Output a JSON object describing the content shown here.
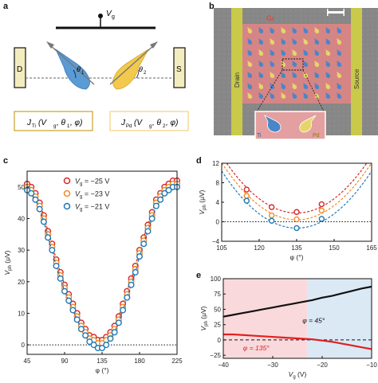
{
  "panels": {
    "a": {
      "letter": "a",
      "gate_label": "V",
      "gate_sub": "g",
      "left_electrode": "D",
      "right_electrode": "S",
      "theta1_label": "θ",
      "theta1_sub": "1",
      "theta2_label": "θ",
      "theta2_sub": "2",
      "box_left": {
        "main": "J",
        "sub": "Ti",
        "args": " (V",
        "args_sub": "g",
        "rest": ", θ",
        "rest_sub": "1",
        "end": ", φ)"
      },
      "box_right": {
        "main": "J",
        "sub": "Pd",
        "args": " (V",
        "args_sub": "g",
        "rest": ", θ",
        "rest_sub": "2",
        "end": ", φ)"
      },
      "colors": {
        "ti": "#5b9bd5",
        "pd": "#f2c94c",
        "box_left_border": "#c9a227",
        "box_right_border": "#f4d27a"
      }
    },
    "b": {
      "letter": "b",
      "gr_label": "Gr",
      "drain_label": "Drain",
      "source_label": "Source",
      "ti_label": "Ti",
      "pd_label": "Pd",
      "colors": {
        "graphene": "#e07a7a",
        "electrode": "#c8c84a",
        "background": "#8a8a8a"
      }
    },
    "c": {
      "letter": "c",
      "legend": [
        {
          "label": "V",
          "sub": "g",
          "value": " = −25 V",
          "color": "#d62728"
        },
        {
          "label": "V",
          "sub": "g",
          "value": " = −23 V",
          "color": "#f08a24"
        },
        {
          "label": "V",
          "sub": "g",
          "value": " = −21 V",
          "color": "#1f77b4"
        }
      ],
      "xlabel": "φ (°)",
      "ylabel_main": "V",
      "ylabel_sub": "ph",
      "ylabel_unit": " (μV)"
    },
    "d": {
      "letter": "d",
      "xlabel": "φ (°)",
      "ylabel_main": "V",
      "ylabel_sub": "ph",
      "ylabel_unit": " (μV)"
    },
    "e": {
      "letter": "e",
      "xlabel_main": "V",
      "xlabel_sub": "g",
      "xlabel_unit": " (V)",
      "ylabel_main": "V",
      "ylabel_sub": "ph",
      "ylabel_unit": " (μV)",
      "annot_45": "φ = 45°",
      "annot_135": "φ = 135°"
    }
  },
  "chart_data": [
    {
      "id": "c",
      "type": "scatter",
      "xlabel": "φ (°)",
      "ylabel": "Vph (μV)",
      "xlim": [
        45,
        225
      ],
      "ylim": [
        -3,
        55
      ],
      "xticks": [
        45,
        90,
        135,
        180,
        225
      ],
      "yticks": [
        0,
        10,
        20,
        30,
        40,
        50
      ],
      "reference_line": 0,
      "series": [
        {
          "name": "Vg = −25 V",
          "color": "#d62728",
          "x": [
            45,
            50,
            55,
            60,
            65,
            70,
            75,
            80,
            85,
            90,
            95,
            100,
            105,
            110,
            115,
            120,
            125,
            130,
            135,
            140,
            145,
            150,
            155,
            160,
            165,
            170,
            175,
            180,
            185,
            190,
            195,
            200,
            205,
            210,
            215,
            220,
            225
          ],
          "y": [
            51,
            50,
            48,
            45,
            41,
            36,
            32,
            27,
            23,
            19,
            16,
            13,
            10,
            7,
            5,
            3,
            2.5,
            1.5,
            1.5,
            2.5,
            4,
            6,
            9,
            13,
            17,
            21,
            25,
            30,
            34,
            38,
            42,
            46,
            48,
            50,
            51,
            52,
            52
          ]
        },
        {
          "name": "Vg = −23 V",
          "color": "#f08a24",
          "x": [
            45,
            50,
            55,
            60,
            65,
            70,
            75,
            80,
            85,
            90,
            95,
            100,
            105,
            110,
            115,
            120,
            125,
            130,
            135,
            140,
            145,
            150,
            155,
            160,
            165,
            170,
            175,
            180,
            185,
            190,
            195,
            200,
            205,
            210,
            215,
            220,
            225
          ],
          "y": [
            50,
            49,
            47,
            44,
            40,
            35,
            31,
            26,
            22,
            18,
            15,
            12,
            9,
            6,
            4,
            2,
            1.5,
            0.5,
            0.5,
            1.5,
            3,
            5,
            8,
            12,
            16,
            20,
            24,
            29,
            33,
            37,
            41,
            45,
            47,
            49,
            50,
            51,
            51
          ]
        },
        {
          "name": "Vg = −21 V",
          "color": "#1f77b4",
          "x": [
            45,
            50,
            55,
            60,
            65,
            70,
            75,
            80,
            85,
            90,
            95,
            100,
            105,
            110,
            115,
            120,
            125,
            130,
            135,
            140,
            145,
            150,
            155,
            160,
            165,
            170,
            175,
            180,
            185,
            190,
            195,
            200,
            205,
            210,
            215,
            220,
            225
          ],
          "y": [
            49,
            48,
            46,
            43,
            39,
            34,
            30,
            25,
            21,
            17,
            14,
            11,
            8,
            5,
            3,
            1,
            0,
            -1,
            -1,
            0,
            2,
            4,
            7,
            11,
            15,
            19,
            23,
            28,
            32,
            36,
            40,
            44,
            46,
            48,
            49,
            50,
            50
          ]
        }
      ]
    },
    {
      "id": "d",
      "type": "scatter",
      "xlabel": "φ (°)",
      "ylabel": "Vph (μV)",
      "xlim": [
        105,
        165
      ],
      "ylim": [
        -4,
        12
      ],
      "xticks": [
        105,
        120,
        135,
        150,
        165
      ],
      "yticks": [
        -4,
        0,
        4,
        8,
        12
      ],
      "reference_line": 0,
      "series": [
        {
          "name": "Vg = −25 V",
          "color": "#d62728",
          "x": [
            115,
            125,
            135,
            145
          ],
          "y": [
            6.6,
            3.0,
            2.0,
            3.6
          ],
          "fit": {
            "vertex_x": 135,
            "vertex_y": 1.8,
            "k": 0.013
          }
        },
        {
          "name": "Vg = −23 V",
          "color": "#f08a24",
          "x": [
            115,
            125,
            135,
            145
          ],
          "y": [
            5.3,
            1.3,
            0.5,
            2.3
          ],
          "fit": {
            "vertex_x": 135,
            "vertex_y": 0.4,
            "k": 0.013
          }
        },
        {
          "name": "Vg = −21 V",
          "color": "#1f77b4",
          "x": [
            115,
            125,
            135,
            145
          ],
          "y": [
            4.3,
            0.2,
            -1.3,
            0.6
          ],
          "fit": {
            "vertex_x": 135,
            "vertex_y": -1.3,
            "k": 0.013
          }
        }
      ]
    },
    {
      "id": "e",
      "type": "line",
      "xlabel": "Vg (V)",
      "ylabel": "Vph (μV)",
      "xlim": [
        -40,
        -10
      ],
      "ylim": [
        -30,
        100
      ],
      "xticks": [
        -40,
        -30,
        -20,
        -10
      ],
      "yticks": [
        -25,
        0,
        25,
        50,
        75,
        100
      ],
      "reference_line": 0,
      "shaded_regions": [
        {
          "from": -40,
          "to": -23,
          "color": "#f9d9dc"
        },
        {
          "from": -23,
          "to": -10,
          "color": "#dbe9f5"
        }
      ],
      "series": [
        {
          "name": "φ = 45°",
          "color": "#111111",
          "x": [
            -40,
            -38,
            -36,
            -34,
            -32,
            -30,
            -28,
            -26,
            -24,
            -22,
            -20,
            -18,
            -16,
            -14,
            -12,
            -10
          ],
          "y": [
            38,
            41,
            44,
            47,
            50,
            53,
            56,
            59,
            62,
            65,
            69,
            72,
            76,
            80,
            84,
            87
          ]
        },
        {
          "name": "φ = 135°",
          "color": "#e02020",
          "x": [
            -40,
            -38,
            -36,
            -34,
            -32,
            -30,
            -28,
            -26,
            -24,
            -22,
            -20,
            -18,
            -16,
            -14,
            -12,
            -10
          ],
          "y": [
            9,
            9,
            8,
            7,
            6,
            5,
            4,
            3,
            2,
            1,
            -1,
            -3,
            -6,
            -9,
            -12,
            -15
          ]
        }
      ]
    }
  ]
}
